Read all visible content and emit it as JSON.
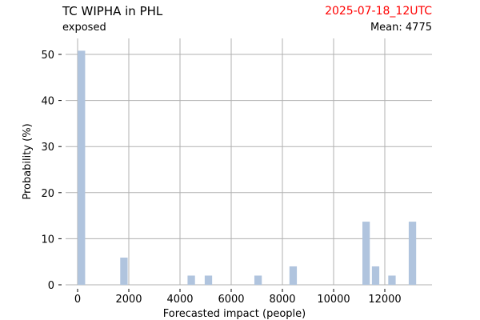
{
  "header": {
    "title": "TC WIPHA in PHL",
    "subtitle": "exposed",
    "date": "2025-07-18_12UTC",
    "mean_label": "Mean: 4775"
  },
  "colors": {
    "bar": "#b0c4de",
    "grid": "#b0b0b0",
    "date": "#ff0000"
  },
  "chart_data": {
    "type": "bar",
    "xlabel": "Forecasted impact (people)",
    "ylabel": "Probability (%)",
    "xlim": [
      -500,
      13500
    ],
    "ylim": [
      0,
      53.5
    ],
    "xticks": [
      0,
      2000,
      4000,
      6000,
      8000,
      10000,
      12000
    ],
    "xtick_labels": [
      "0",
      "2000",
      "4000",
      "6000",
      "8000",
      "10000",
      "12000"
    ],
    "yticks": [
      0,
      10,
      20,
      30,
      40,
      50
    ],
    "ytick_labels": [
      "0",
      "10",
      "20",
      "30",
      "40",
      "50"
    ],
    "bin_width": 290,
    "grid": true,
    "x": [
      150,
      1810,
      4440,
      5110,
      7050,
      8420,
      11270,
      11640,
      12280,
      13080
    ],
    "values": [
      50.8,
      5.9,
      2.0,
      2.0,
      2.0,
      4.0,
      13.7,
      4.0,
      2.0,
      13.7
    ]
  }
}
